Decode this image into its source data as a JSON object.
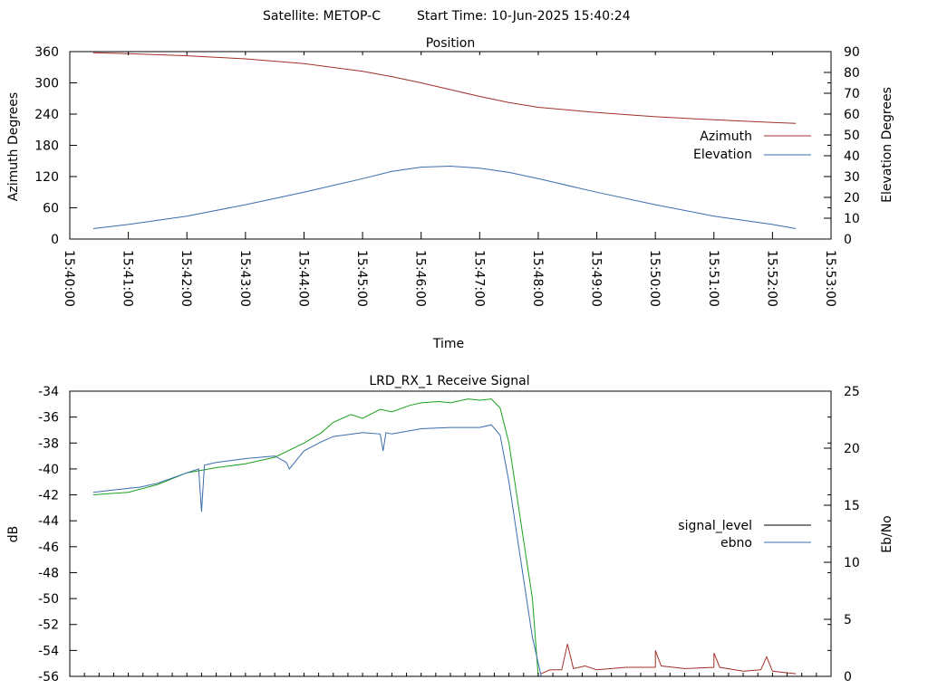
{
  "header": {
    "satellite": "Satellite: METOP-C",
    "start_time": "Start Time: 10-Jun-2025 15:40:24"
  },
  "chart_data": [
    {
      "type": "line",
      "title": "Position",
      "xlabel": "Time",
      "ylabel": "Azimuth Degrees",
      "y2label": "Elevation Degrees",
      "x_ticks": [
        "15:40:00",
        "15:41:00",
        "15:42:00",
        "15:43:00",
        "15:44:00",
        "15:45:00",
        "15:46:00",
        "15:47:00",
        "15:48:00",
        "15:49:00",
        "15:50:00",
        "15:51:00",
        "15:52:00",
        "15:53:00"
      ],
      "xlim_minutes": [
        0,
        13
      ],
      "ylim": [
        0,
        360
      ],
      "y_ticks": [
        0,
        60,
        120,
        180,
        240,
        300,
        360
      ],
      "y2lim": [
        0,
        90
      ],
      "y2_ticks": [
        0,
        10,
        20,
        30,
        40,
        50,
        60,
        70,
        80,
        90
      ],
      "legend_position": "right",
      "series": [
        {
          "name": "Azimuth",
          "axis": "y",
          "color": "#a0302a",
          "x": [
            0.4,
            1,
            2,
            3,
            4,
            5,
            5.5,
            6,
            6.5,
            7,
            7.5,
            8,
            9,
            10,
            11,
            12,
            12.4
          ],
          "values": [
            358,
            356,
            352,
            346,
            337,
            322,
            312,
            300,
            287,
            274,
            262,
            253,
            243,
            235,
            229,
            224,
            222
          ]
        },
        {
          "name": "Elevation",
          "axis": "y2",
          "color": "#3a6cad",
          "x": [
            0.4,
            1,
            2,
            3,
            4,
            5,
            5.5,
            6,
            6.5,
            7,
            7.5,
            8,
            9,
            10,
            11,
            12,
            12.4
          ],
          "values": [
            5,
            7,
            11,
            16.5,
            22.5,
            29,
            32.5,
            34.5,
            35,
            34,
            32,
            29,
            22.5,
            16.5,
            11,
            7,
            5
          ]
        }
      ]
    },
    {
      "type": "line",
      "title": "LRD_RX_1 Receive Signal",
      "ylabel": "dB",
      "y2label": "Eb/No",
      "xlim_minutes": [
        0,
        13
      ],
      "ylim": [
        -56,
        -34
      ],
      "y_ticks": [
        -56,
        -54,
        -52,
        -50,
        -48,
        -46,
        -44,
        -42,
        -40,
        -38,
        -36,
        -34
      ],
      "y2lim": [
        0,
        25
      ],
      "y2_ticks": [
        0,
        5,
        10,
        15,
        20,
        25
      ],
      "legend_position": "right",
      "legend_entries": [
        {
          "name": "signal_level",
          "color": "#000000"
        },
        {
          "name": "ebno",
          "color": "#3a6cad"
        }
      ],
      "series": [
        {
          "name": "",
          "axis": "y",
          "color": "#1aa01a",
          "x": [
            0.4,
            1,
            1.5,
            2,
            2.5,
            3,
            3.5,
            4,
            4.3,
            4.5,
            4.8,
            5,
            5.3,
            5.5,
            5.8,
            6,
            6.3,
            6.5,
            6.8,
            7,
            7.2,
            7.35,
            7.5,
            7.7,
            7.9,
            8.0
          ],
          "values": [
            -42,
            -41.8,
            -41.2,
            -40.3,
            -39.9,
            -39.6,
            -39.1,
            -38,
            -37.2,
            -36.4,
            -35.8,
            -36.1,
            -35.4,
            -35.6,
            -35.1,
            -34.9,
            -34.8,
            -34.9,
            -34.6,
            -34.7,
            -34.6,
            -35.3,
            -38,
            -44,
            -50,
            -56
          ]
        },
        {
          "name": "",
          "axis": "y",
          "color": "#3a6cad",
          "x": [
            0.4,
            1,
            1.2,
            1.5,
            2,
            2.2,
            2.25,
            2.3,
            2.5,
            3,
            3.5,
            3.7,
            3.75,
            4,
            4.3,
            4.5,
            5,
            5.3,
            5.35,
            5.4,
            5.5,
            6,
            6.5,
            7,
            7.2,
            7.35,
            7.5,
            7.7,
            7.9,
            8.05
          ],
          "values": [
            -41.8,
            -41.5,
            -41.4,
            -41.1,
            -40.3,
            -40,
            -43.3,
            -39.7,
            -39.5,
            -39.2,
            -39,
            -39.5,
            -40,
            -38.6,
            -37.9,
            -37.5,
            -37.2,
            -37.3,
            -38.6,
            -37.2,
            -37.3,
            -36.9,
            -36.8,
            -36.8,
            -36.6,
            -37.4,
            -41,
            -47,
            -53,
            -56
          ]
        },
        {
          "name": "",
          "axis": "y",
          "color": "#a0302a",
          "x": [
            8.05,
            8.2,
            8.4,
            8.5,
            8.6,
            8.8,
            9,
            9.5,
            10,
            10,
            10.1,
            10.5,
            11,
            11,
            11.1,
            11.5,
            11.8,
            11.9,
            12,
            12.4
          ],
          "values": [
            -55.8,
            -55.5,
            -55.5,
            -53.5,
            -55.4,
            -55.2,
            -55.5,
            -55.3,
            -55.3,
            -54,
            -55.2,
            -55.4,
            -55.3,
            -54.2,
            -55.3,
            -55.6,
            -55.5,
            -54.5,
            -55.6,
            -55.8
          ]
        }
      ]
    }
  ]
}
